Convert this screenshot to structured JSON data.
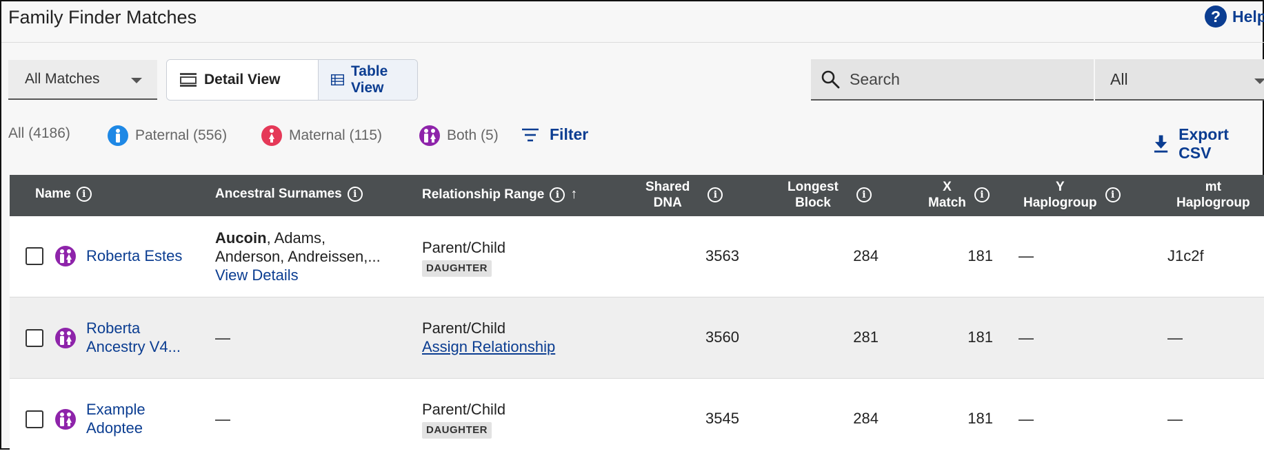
{
  "header": {
    "title": "Family Finder Matches",
    "help_label": "Help"
  },
  "controls": {
    "matches_select": "All Matches",
    "detail_view_label": "Detail View",
    "table_view_label": "Table View",
    "search_placeholder": "Search",
    "scope_select": "All"
  },
  "filters": {
    "all": "All (4186)",
    "paternal": "Paternal (556)",
    "maternal": "Maternal (115)",
    "both": "Both (5)",
    "filter_label": "Filter",
    "export_label": "Export CSV"
  },
  "colors": {
    "accent": "#0b3d91",
    "paternal": "#1e88e5",
    "maternal": "#e53958",
    "both": "#8e24aa",
    "header_bg": "#4b4f51"
  },
  "table": {
    "columns": {
      "name": "Name",
      "surnames": "Ancestral Surnames",
      "relationship": "Relationship Range",
      "shared_dna_1": "Shared",
      "shared_dna_2": "DNA",
      "longest_1": "Longest",
      "longest_2": "Block",
      "x_1": "X",
      "x_2": "Match",
      "y_1": "Y",
      "y_2": "Haplogroup",
      "mt_1": "mt",
      "mt_2": "Haplogroup"
    },
    "rows": [
      {
        "name": "Roberta Estes",
        "surnames_bold": "Aucoin",
        "surnames_rest": ", Adams,",
        "surnames_line2": "Anderson, Andreissen,...",
        "surnames_link": "View Details",
        "relationship": "Parent/Child",
        "badge": "DAUGHTER",
        "shared_dna": "3563",
        "longest_block": "284",
        "x_match": "181",
        "y_haplogroup": "—",
        "mt_haplogroup": "J1c2f"
      },
      {
        "name_line1": "Roberta",
        "name_line2": "Ancestry V4...",
        "surnames": "—",
        "relationship": "Parent/Child",
        "assign": "Assign Relationship",
        "shared_dna": "3560",
        "longest_block": "281",
        "x_match": "181",
        "y_haplogroup": "—",
        "mt_haplogroup": "—"
      },
      {
        "name_line1": "Example",
        "name_line2": "Adoptee",
        "surnames": "—",
        "relationship": "Parent/Child",
        "badge": "DAUGHTER",
        "shared_dna": "3545",
        "longest_block": "284",
        "x_match": "181",
        "y_haplogroup": "—",
        "mt_haplogroup": "—"
      }
    ]
  }
}
